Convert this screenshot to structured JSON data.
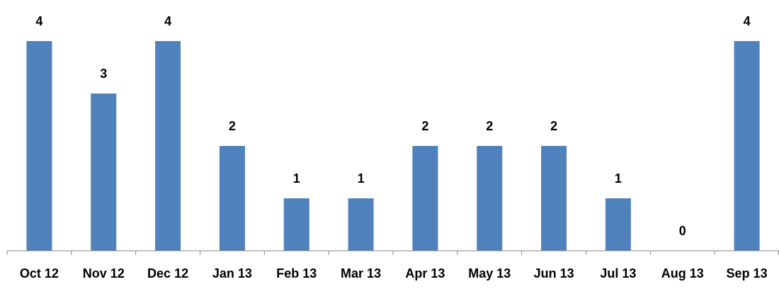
{
  "chart_data": {
    "type": "bar",
    "categories": [
      "Oct 12",
      "Nov 12",
      "Dec 12",
      "Jan 13",
      "Feb 13",
      "Mar 13",
      "Apr 13",
      "May 13",
      "Jun 13",
      "Jul 13",
      "Aug 13",
      "Sep 13"
    ],
    "values": [
      4,
      3,
      4,
      2,
      1,
      1,
      2,
      2,
      2,
      1,
      0,
      4
    ],
    "color": "#4f81bd"
  }
}
